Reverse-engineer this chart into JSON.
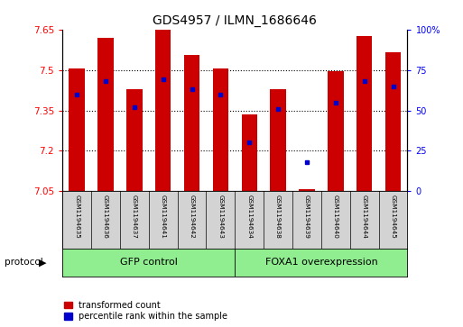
{
  "title": "GDS4957 / ILMN_1686646",
  "samples": [
    "GSM1194635",
    "GSM1194636",
    "GSM1194637",
    "GSM1194641",
    "GSM1194642",
    "GSM1194643",
    "GSM1194634",
    "GSM1194638",
    "GSM1194639",
    "GSM1194640",
    "GSM1194644",
    "GSM1194645"
  ],
  "transformed_count": [
    7.505,
    7.62,
    7.43,
    7.655,
    7.555,
    7.505,
    7.335,
    7.43,
    7.057,
    7.495,
    7.625,
    7.565
  ],
  "percentile_rank": [
    60,
    68,
    52,
    69,
    63,
    60,
    30,
    51,
    18,
    55,
    68,
    65
  ],
  "ylim_left": [
    7.05,
    7.65
  ],
  "ylim_right": [
    0,
    100
  ],
  "yticks_left": [
    7.05,
    7.2,
    7.35,
    7.5,
    7.65
  ],
  "yticks_right": [
    0,
    25,
    50,
    75,
    100
  ],
  "ytick_labels_right": [
    "0",
    "25",
    "50",
    "75",
    "100%"
  ],
  "bar_color": "#cc0000",
  "dot_color": "#0000cc",
  "label_bg_color": "#d3d3d3",
  "group_bg_color": "#90ee90",
  "background_color": "#ffffff",
  "bar_bottom": 7.05,
  "bar_width": 0.55,
  "group1_label": "GFP control",
  "group2_label": "FOXA1 overexpression",
  "legend1": "transformed count",
  "legend2": "percentile rank within the sample",
  "protocol_label": "protocol"
}
